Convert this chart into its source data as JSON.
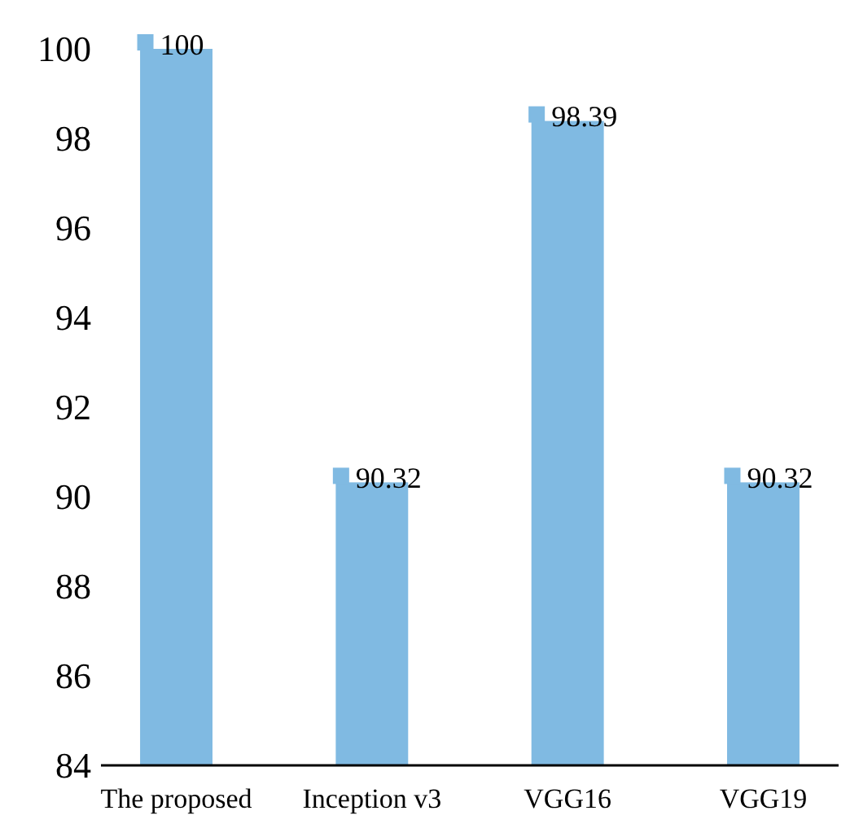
{
  "chart_data": {
    "type": "bar",
    "categories": [
      "The proposed",
      "Inception v3",
      "VGG16",
      "VGG19"
    ],
    "values": [
      100,
      90.32,
      98.39,
      90.32
    ],
    "color": "#80bae2",
    "ylim": [
      84,
      100
    ],
    "yticks": [
      84,
      86,
      88,
      90,
      92,
      94,
      96,
      98,
      100
    ],
    "grid": false,
    "data_labels": true
  }
}
